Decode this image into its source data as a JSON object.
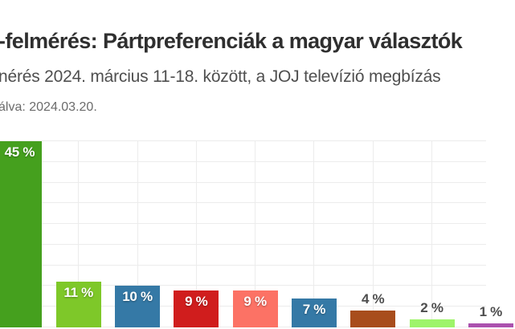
{
  "header": {
    "title": "-felmérés: Pártpreferenciák a magyar választók",
    "subtitle": "nérés 2024. március 11-18. között, a JOJ televízió megbízás",
    "note": "álva: 2024.03.20."
  },
  "chart_data": {
    "type": "bar",
    "title": "-felmérés: Pártpreferenciák a magyar választók",
    "subtitle": "nérés 2024. március 11-18. között, a JOJ televízió megbízás",
    "note": "álva: 2024.03.20.",
    "ylim": [
      0,
      45
    ],
    "grid_step": 5,
    "grid": true,
    "axis_tick_labels_visible": false,
    "bars": [
      {
        "value": 45,
        "label": "45 %",
        "color": "#45a01e",
        "label_position": "inside"
      },
      {
        "value": 11,
        "label": "11 %",
        "color": "#7ec829",
        "label_position": "inside"
      },
      {
        "value": 10,
        "label": "10 %",
        "color": "#3579a6",
        "label_position": "inside"
      },
      {
        "value": 9,
        "label": "9 %",
        "color": "#d01d1d",
        "label_position": "inside"
      },
      {
        "value": 9,
        "label": "9 %",
        "color": "#fc7265",
        "label_position": "inside"
      },
      {
        "value": 7,
        "label": "7 %",
        "color": "#3579a6",
        "label_position": "inside"
      },
      {
        "value": 4,
        "label": "4 %",
        "color": "#a84d1c",
        "label_position": "above"
      },
      {
        "value": 2,
        "label": "2 %",
        "color": "#9ef46a",
        "label_position": "above"
      },
      {
        "value": 1,
        "label": "1 %",
        "color": "#ab51ae",
        "label_position": "above"
      }
    ]
  },
  "colors": {
    "background": "#ffffff",
    "gridline": "#ececec",
    "title_text": "#2f2f2f",
    "subtitle_text": "#4f4f4f",
    "note_text": "#6b6b6b",
    "label_inside_text": "#ffffff",
    "label_above_text": "#4d4d4d"
  }
}
